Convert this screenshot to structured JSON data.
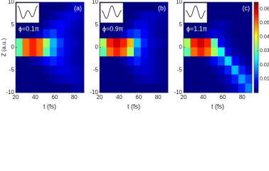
{
  "chart_data": [
    {
      "type": "heatmap",
      "label": "(a)",
      "annotation": "ϕ=0.1π",
      "x_label": "t (fs)",
      "y_label": "Z (a.u.)",
      "x": [
        23.5,
        30.5,
        37.5,
        44.5,
        51.5,
        58.5,
        65.5,
        72.5,
        79.5,
        86.5
      ],
      "y": [
        9,
        7,
        5,
        3,
        1,
        -1,
        -3,
        -5,
        -7,
        -9
      ],
      "values": [
        [
          0,
          0,
          0,
          0,
          0,
          0,
          0,
          0.002,
          0.004,
          0.004
        ],
        [
          0,
          0,
          0,
          0,
          0,
          0.002,
          0.004,
          0.006,
          0.006,
          0.004
        ],
        [
          0,
          0,
          0,
          0,
          0.003,
          0.006,
          0.008,
          0.006,
          0.004,
          0.003
        ],
        [
          0,
          0,
          0,
          0.004,
          0.01,
          0.012,
          0.008,
          0.005,
          0.003,
          0.002
        ],
        [
          0.03,
          0.05,
          0.055,
          0.05,
          0.035,
          0.02,
          0.012,
          0.006,
          0.004,
          0.002
        ],
        [
          0.03,
          0.05,
          0.055,
          0.05,
          0.03,
          0.018,
          0.01,
          0.006,
          0.003,
          0.002
        ],
        [
          0,
          0,
          0.002,
          0.004,
          0.008,
          0.01,
          0.008,
          0.005,
          0.003,
          0.002
        ],
        [
          0,
          0,
          0,
          0,
          0.002,
          0.004,
          0.006,
          0.006,
          0.004,
          0.003
        ],
        [
          0,
          0,
          0,
          0,
          0,
          0.002,
          0.003,
          0.004,
          0.004,
          0.003
        ],
        [
          0,
          0,
          0,
          0,
          0,
          0,
          0,
          0,
          0.002,
          0.002
        ]
      ],
      "xlim": [
        20,
        90
      ],
      "ylim": [
        -10,
        10
      ],
      "xticks": [
        20,
        40,
        60,
        80
      ],
      "yticks": [
        -10,
        -5,
        0,
        5,
        10
      ]
    },
    {
      "type": "heatmap",
      "label": "(b)",
      "annotation": "ϕ=0.9π",
      "x_label": "t (fs)",
      "x": [
        23.5,
        30.5,
        37.5,
        44.5,
        51.5,
        58.5,
        65.5,
        72.5,
        79.5,
        86.5
      ],
      "y": [
        9,
        7,
        5,
        3,
        1,
        -1,
        -3,
        -5,
        -7,
        -9
      ],
      "values": [
        [
          0,
          0,
          0,
          0,
          0,
          0,
          0,
          0,
          0,
          0.002
        ],
        [
          0,
          0,
          0,
          0,
          0,
          0.002,
          0.004,
          0.004,
          0.003,
          0.002
        ],
        [
          0,
          0,
          0,
          0,
          0.002,
          0.006,
          0.006,
          0.004,
          0.002,
          0.002
        ],
        [
          0,
          0,
          0,
          0.004,
          0.01,
          0.012,
          0.008,
          0.004,
          0.002,
          0.001
        ],
        [
          0.035,
          0.055,
          0.06,
          0.055,
          0.045,
          0.02,
          0.01,
          0.005,
          0.003,
          0.002
        ],
        [
          0.03,
          0.05,
          0.055,
          0.05,
          0.035,
          0.015,
          0.008,
          0.004,
          0.002,
          0.001
        ],
        [
          0,
          0,
          0,
          0.002,
          0.006,
          0.01,
          0.006,
          0.004,
          0.002,
          0.001
        ],
        [
          0,
          0,
          0,
          0,
          0.002,
          0.004,
          0.005,
          0.004,
          0.002,
          0.001
        ],
        [
          0,
          0,
          0,
          0,
          0,
          0.002,
          0.003,
          0.003,
          0.002,
          0.001
        ],
        [
          0,
          0,
          0,
          0,
          0,
          0,
          0,
          0,
          0,
          0
        ]
      ],
      "xlim": [
        20,
        90
      ],
      "ylim": [
        -10,
        10
      ],
      "xticks": [
        20,
        40,
        60,
        80
      ],
      "yticks": [
        -10,
        -5,
        0,
        5,
        10
      ]
    },
    {
      "type": "heatmap",
      "label": "(c)",
      "annotation": "ϕ=1.1π",
      "x_label": "t (fs)",
      "x": [
        23.5,
        30.5,
        37.5,
        44.5,
        51.5,
        58.5,
        65.5,
        72.5,
        79.5,
        86.5
      ],
      "y": [
        9,
        7,
        5,
        3,
        1,
        -1,
        -3,
        -5,
        -7,
        -9
      ],
      "values": [
        [
          0,
          0,
          0,
          0,
          0,
          0,
          0,
          0,
          0,
          0
        ],
        [
          0,
          0,
          0,
          0,
          0,
          0,
          0,
          0,
          0,
          0
        ],
        [
          0,
          0,
          0,
          0,
          0.002,
          0.003,
          0.002,
          0,
          0,
          0
        ],
        [
          0,
          0,
          0,
          0.003,
          0.006,
          0.004,
          0.002,
          0,
          0,
          0
        ],
        [
          0.035,
          0.055,
          0.06,
          0.055,
          0.03,
          0.008,
          0.003,
          0.001,
          0,
          0
        ],
        [
          0.03,
          0.05,
          0.055,
          0.05,
          0.035,
          0.025,
          0.006,
          0.002,
          0.001,
          0
        ],
        [
          0,
          0,
          0,
          0.002,
          0.008,
          0.012,
          0.022,
          0.008,
          0.003,
          0.001
        ],
        [
          0,
          0,
          0,
          0,
          0.002,
          0.004,
          0.01,
          0.02,
          0.01,
          0.004
        ],
        [
          0,
          0,
          0,
          0,
          0,
          0.002,
          0.004,
          0.01,
          0.018,
          0.012
        ],
        [
          0,
          0,
          0,
          0,
          0,
          0,
          0.002,
          0.004,
          0.01,
          0.016
        ]
      ],
      "xlim": [
        20,
        90
      ],
      "ylim": [
        -10,
        10
      ],
      "xticks": [
        20,
        40,
        60,
        80
      ],
      "yticks": [
        -10,
        -5,
        0,
        5,
        10
      ]
    }
  ],
  "colorbar": {
    "colormap": "jet",
    "clim": [
      0,
      0.065
    ],
    "ticks": [
      0.01,
      0.02,
      0.03,
      0.04,
      0.05,
      0.06
    ]
  }
}
